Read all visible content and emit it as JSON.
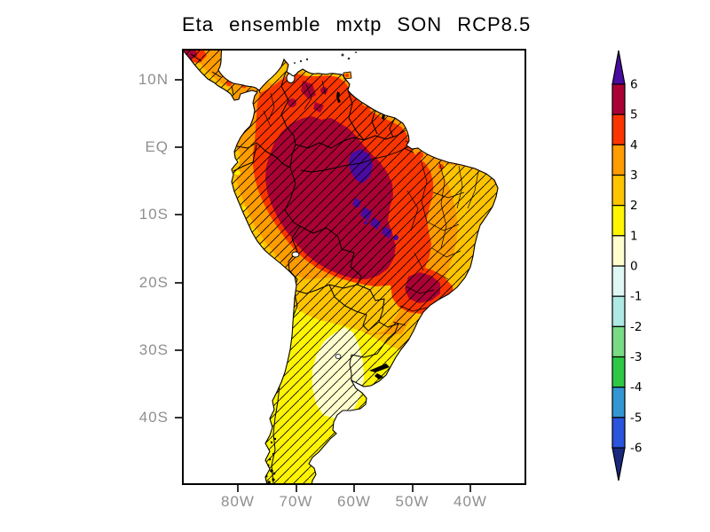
{
  "figure": {
    "title": "Eta ensemble mxtp SON RCP8.5",
    "background": "#ffffff"
  },
  "axes": {
    "lat_labels": [
      "10N",
      "EQ",
      "10S",
      "20S",
      "30S",
      "40S"
    ],
    "lon_labels": [
      "80W",
      "70W",
      "60W",
      "50W",
      "40W"
    ],
    "label_color": "#8f8f8f"
  },
  "colorbar": {
    "levels": [
      "6",
      "5",
      "4",
      "3",
      "2",
      "1",
      "0",
      "-1",
      "-2",
      "-3",
      "-4",
      "-5",
      "-6"
    ],
    "segment_colors_top_to_bottom": [
      "#AA0235",
      "#FB3500",
      "#FF9C00",
      "#FFC400",
      "#FFF500",
      "#FFFFCE",
      "#DFF7F5",
      "#AEE9E4",
      "#79DB83",
      "#2EC845",
      "#3496D2",
      "#2A55DC"
    ],
    "arrow_top_color": "#4A0BA0",
    "arrow_bottom_color": "#18287E"
  },
  "palette": {
    "purple": "#4A0BA0",
    "crimson": "#AA0235",
    "red": "#FB3500",
    "orange": "#FF9C00",
    "amber": "#FFC400",
    "yellow": "#FFF500",
    "cream": "#FFFFCE",
    "border": "#000000",
    "water": "#ffffff"
  },
  "chart_data": {
    "type": "heatmap",
    "title": "Eta ensemble mxtp SON RCP8.5",
    "x_tick_labels": [
      "80W",
      "70W",
      "60W",
      "50W",
      "40W"
    ],
    "y_tick_labels": [
      "10N",
      "EQ",
      "10S",
      "20S",
      "30S",
      "40S"
    ],
    "lon_range_approx": [
      "90W",
      "30W"
    ],
    "lat_range_approx": [
      "50S",
      "15N"
    ],
    "colorbar_range": {
      "min": -6,
      "max": 6,
      "interval": 1,
      "open_ended_arrows": true
    },
    "units": "projected change in maximum temperature (degC), SON season, RCP8.5, Eta model ensemble",
    "overlay": "diagonal hatching drawn over the entire landmass",
    "regions": [
      {
        "area": "central Amazon patches (~60W 3S and chain ~60-57W 10-13S)",
        "value": "> 6"
      },
      {
        "area": "Amazon basin core: S Colombia, S Venezuela, west-central Brazil, N Bolivia",
        "value": "5 to 6"
      },
      {
        "area": "ring around the Amazon core, interior E Brazil, SE Brazil core near ~52W 27S",
        "value": "4 to 5"
      },
      {
        "area": "Guianas, Venezuela coast, E Brazil, Central America, Andes flank",
        "value": "3 to 4"
      },
      {
        "area": "NE Brazil tip, Pacific coastal strip (Ecuador-Peru-N Chile), Chaco belt 20-25S, SE coastal strip",
        "value": "2 to 3"
      },
      {
        "area": "S Paraguay, southernmost Brazil, Uruguay, most of Argentina and Chile, Patagonia",
        "value": "1 to 2"
      },
      {
        "area": "central-east Argentina Pampas (~63W 34S) and small central Chile coastal sliver",
        "value": "0 to 1"
      }
    ]
  }
}
